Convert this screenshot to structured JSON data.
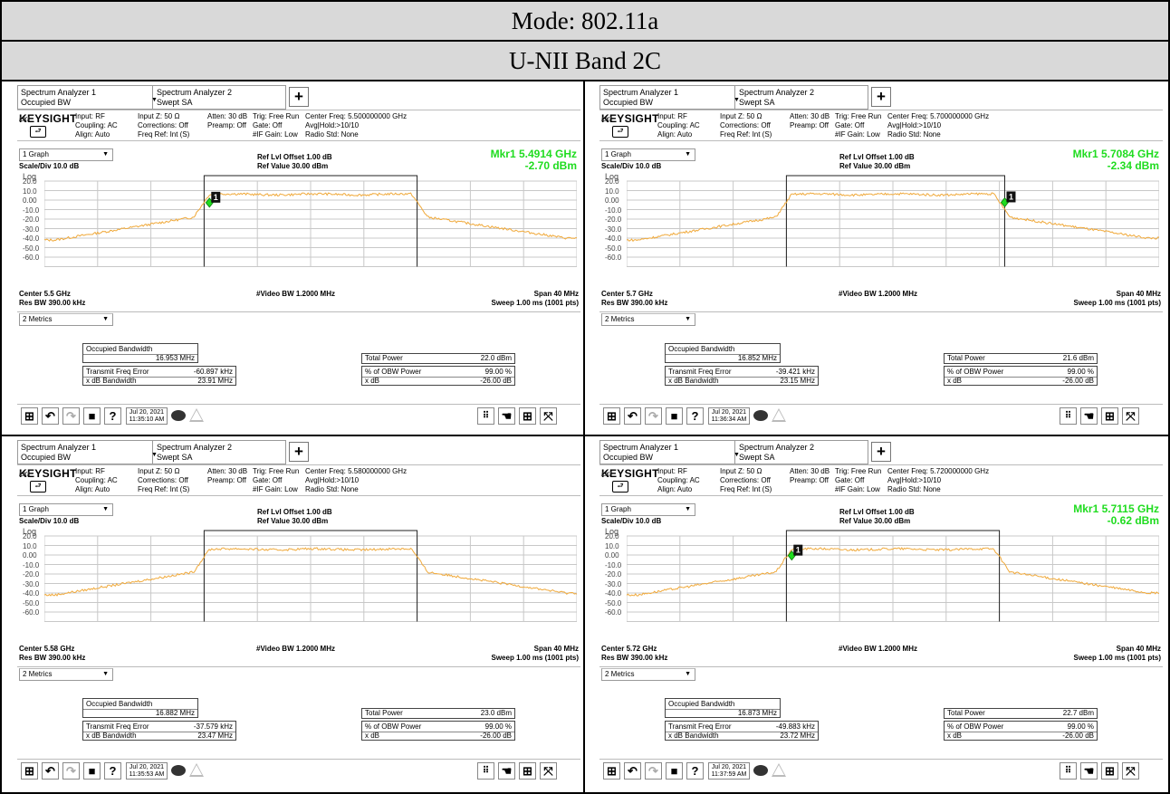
{
  "header": {
    "mode": "Mode: 802.11a",
    "band": "U-NII Band 2C"
  },
  "common": {
    "tab1_line1": "Spectrum Analyzer 1",
    "tab1_line2": "Occupied BW",
    "tab2_line1": "Spectrum Analyzer 2",
    "tab2_line2": "Swept SA",
    "plus": "+",
    "logo": "KEYSIGHT",
    "lxi": "LXI",
    "input": "Input: RF",
    "coupling": "Coupling: AC",
    "align": "Align: Auto",
    "inputz": "Input Z: 50 Ω",
    "corrections": "Corrections: Off",
    "freqref": "Freq Ref: Int (S)",
    "atten": "Atten: 30 dB",
    "preamp": "Preamp: Off",
    "trig": "Trig: Free Run",
    "gate": "Gate: Off",
    "ifgain": "#IF Gain: Low",
    "avghold": "Avg|Hold:>10/10",
    "radiostd": "Radio Std: None",
    "graph_select": "1 Graph",
    "scale": "Scale/Div 10.0 dB",
    "ref_offset": "Ref Lvl Offset 1.00 dB",
    "ref_value": "Ref Value 30.00 dBm",
    "ylog": "Log",
    "yticks": [
      "20.0",
      "10.0",
      "0.00",
      "-10.0",
      "-20.0",
      "-30.0",
      "-40.0",
      "-50.0",
      "-60.0"
    ],
    "vbw": "#Video BW 1.2000 MHz",
    "resbw": "Res BW 390.00 kHz",
    "span": "Span 40 MHz",
    "sweep": "Sweep 1.00 ms (1001 pts)",
    "metrics_select": "2 Metrics",
    "obw_label": "Occupied Bandwidth",
    "tfe_label": "Transmit Freq Error",
    "xdb_bw_label": "x dB Bandwidth",
    "tp_label": "Total Power",
    "pobw_label": "% of OBW Power",
    "xdb_label": "x dB",
    "pobw_value": "99.00 %",
    "xdb_value": "-26.00 dB",
    "date": "Jul 20, 2021",
    "marker_number": "1"
  },
  "panels": [
    {
      "center": "Center 5.5 GHz",
      "center_freq_info": "Center Freq: 5.500000000 GHz",
      "marker": {
        "label": "Mkr1  5.4914 GHz",
        "level": "-2.70 dBm",
        "x_frac": 0.31,
        "level_db": -2.7
      },
      "obw": "16.953 MHz",
      "tfe": "-60.897 kHz",
      "xdb_bw": "23.91 MHz",
      "total_power": "22.0 dBm",
      "time": "11:35:10 AM",
      "obw_window": [
        0.3,
        0.7
      ]
    },
    {
      "center": "Center 5.7 GHz",
      "center_freq_info": "Center Freq: 5.700000000 GHz",
      "marker": {
        "label": "Mkr1  5.7084 GHz",
        "level": "-2.34 dBm",
        "x_frac": 0.71,
        "level_db": -2.34
      },
      "obw": "16.852 MHz",
      "tfe": "-39.421 kHz",
      "xdb_bw": "23.15 MHz",
      "total_power": "21.6 dBm",
      "time": "11:36:34 AM",
      "obw_window": [
        0.3,
        0.71
      ]
    },
    {
      "center": "Center 5.58 GHz",
      "center_freq_info": "Center Freq: 5.580000000 GHz",
      "marker": null,
      "obw": "16.882 MHz",
      "tfe": "-37.579 kHz",
      "xdb_bw": "23.47 MHz",
      "total_power": "23.0 dBm",
      "time": "11:35:53 AM",
      "obw_window": [
        0.3,
        0.7
      ]
    },
    {
      "center": "Center 5.72 GHz",
      "center_freq_info": "Center Freq: 5.720000000 GHz",
      "marker": {
        "label": "Mkr1  5.7115 GHz",
        "level": "-0.62 dBm",
        "x_frac": 0.31,
        "level_db": -0.62
      },
      "obw": "16.873 MHz",
      "tfe": "-49.883 kHz",
      "xdb_bw": "23.72 MHz",
      "total_power": "22.7 dBm",
      "time": "11:37:59 AM",
      "obw_window": [
        0.3,
        0.7
      ]
    }
  ],
  "colors": {
    "trace": "#f0a93a",
    "marker": "#1fdc1f",
    "grid": "#c8c8c8"
  },
  "icons": [
    "windows-icon",
    "undo-icon",
    "redo-icon",
    "folder-icon",
    "help-icon",
    "chat-icon",
    "warning-icon",
    "keypad-icon",
    "touch-icon",
    "layout-icon",
    "fullscreen-icon"
  ]
}
